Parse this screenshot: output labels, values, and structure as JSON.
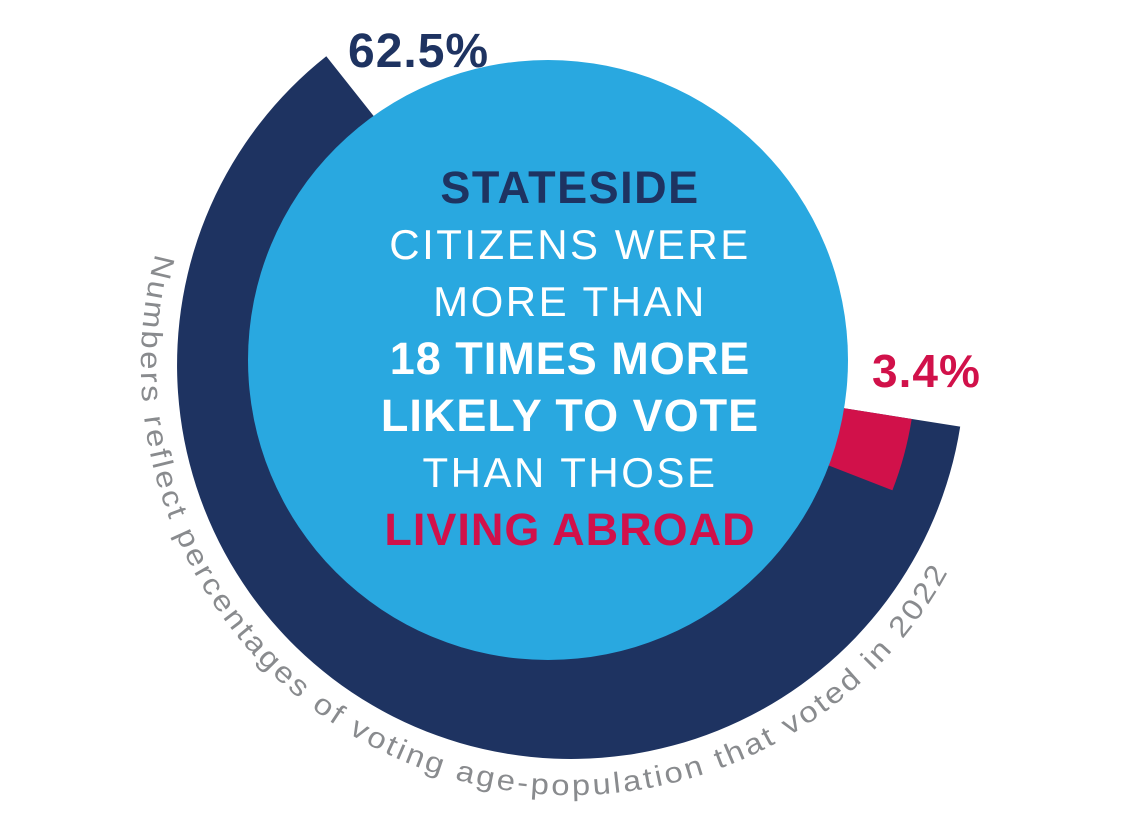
{
  "colors": {
    "navy": "#1E3361",
    "light_blue": "#29A8E0",
    "red": "#D1114A",
    "gray": "#898B8E",
    "white": "#FFFFFF",
    "background": "#FFFFFF"
  },
  "chart_data": {
    "type": "donut",
    "title": "",
    "legend_position": "none",
    "grid": false,
    "total_reference": 100,
    "slices": [
      {
        "label": "62.5%",
        "value": 62.5,
        "color": "#1E3361",
        "segment": "stateside",
        "arc_degrees": 225
      },
      {
        "label": "3.4%",
        "value": 3.4,
        "color": "#D1114A",
        "segment": "living-abroad",
        "arc_degrees": 12.24
      }
    ],
    "center_message": {
      "lines": [
        {
          "text": "STATESIDE",
          "style": "navy-bold"
        },
        {
          "text": "CITIZENS WERE",
          "style": "white-regular"
        },
        {
          "text": "MORE THAN",
          "style": "white-regular"
        },
        {
          "text": "18 TIMES MORE",
          "style": "white-bold"
        },
        {
          "text": "LIKELY TO VOTE",
          "style": "white-bold"
        },
        {
          "text": "THAN THOSE",
          "style": "white-regular"
        },
        {
          "text": "LIVING ABROAD",
          "style": "red-bold"
        }
      ]
    },
    "caption": "Numbers reflect percentages of voting age-population that voted in 2022"
  }
}
